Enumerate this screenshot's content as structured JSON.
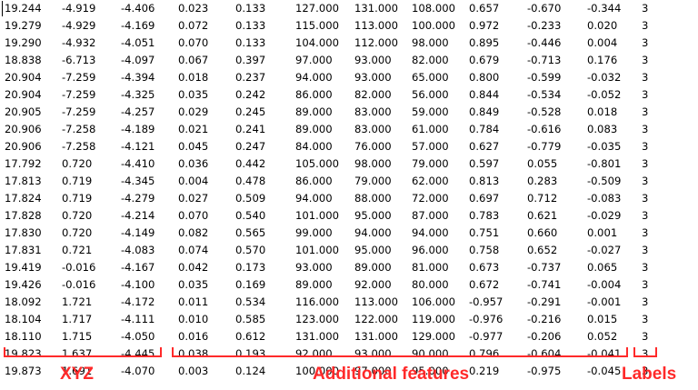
{
  "rows": [
    [
      "19.244",
      "-4.919",
      "-4.406",
      "0.023",
      "0.133",
      "127.000",
      "131.000",
      "108.000",
      "0.657",
      "-0.670",
      "-0.344",
      "3"
    ],
    [
      "19.279",
      "-4.929",
      "-4.169",
      "0.072",
      "0.133",
      "115.000",
      "113.000",
      "100.000",
      "0.972",
      "-0.233",
      "0.020",
      "3"
    ],
    [
      "19.290",
      "-4.932",
      "-4.051",
      "0.070",
      "0.133",
      "104.000",
      "112.000",
      "98.000",
      "0.895",
      "-0.446",
      "0.004",
      "3"
    ],
    [
      "18.838",
      "-6.713",
      "-4.097",
      "0.067",
      "0.397",
      "97.000",
      "93.000",
      "82.000",
      "0.679",
      "-0.713",
      "0.176",
      "3"
    ],
    [
      "20.904",
      "-7.259",
      "-4.394",
      "0.018",
      "0.237",
      "94.000",
      "93.000",
      "65.000",
      "0.800",
      "-0.599",
      "-0.032",
      "3"
    ],
    [
      "20.904",
      "-7.259",
      "-4.325",
      "0.035",
      "0.242",
      "86.000",
      "82.000",
      "56.000",
      "0.844",
      "-0.534",
      "-0.052",
      "3"
    ],
    [
      "20.905",
      "-7.259",
      "-4.257",
      "0.029",
      "0.245",
      "89.000",
      "83.000",
      "59.000",
      "0.849",
      "-0.528",
      "0.018",
      "3"
    ],
    [
      "20.906",
      "-7.258",
      "-4.189",
      "0.021",
      "0.241",
      "89.000",
      "83.000",
      "61.000",
      "0.784",
      "-0.616",
      "0.083",
      "3"
    ],
    [
      "20.906",
      "-7.258",
      "-4.121",
      "0.045",
      "0.247",
      "84.000",
      "76.000",
      "57.000",
      "0.627",
      "-0.779",
      "-0.035",
      "3"
    ],
    [
      "17.792",
      "0.720",
      "-4.410",
      "0.036",
      "0.442",
      "105.000",
      "98.000",
      "79.000",
      "0.597",
      "0.055",
      "-0.801",
      "3"
    ],
    [
      "17.813",
      "0.719",
      "-4.345",
      "0.004",
      "0.478",
      "86.000",
      "79.000",
      "62.000",
      "0.813",
      "0.283",
      "-0.509",
      "3"
    ],
    [
      "17.824",
      "0.719",
      "-4.279",
      "0.027",
      "0.509",
      "94.000",
      "88.000",
      "72.000",
      "0.697",
      "0.712",
      "-0.083",
      "3"
    ],
    [
      "17.828",
      "0.720",
      "-4.214",
      "0.070",
      "0.540",
      "101.000",
      "95.000",
      "87.000",
      "0.783",
      "0.621",
      "-0.029",
      "3"
    ],
    [
      "17.830",
      "0.720",
      "-4.149",
      "0.082",
      "0.565",
      "99.000",
      "94.000",
      "94.000",
      "0.751",
      "0.660",
      "0.001",
      "3"
    ],
    [
      "17.831",
      "0.721",
      "-4.083",
      "0.074",
      "0.570",
      "101.000",
      "95.000",
      "96.000",
      "0.758",
      "0.652",
      "-0.027",
      "3"
    ],
    [
      "19.419",
      "-0.016",
      "-4.167",
      "0.042",
      "0.173",
      "93.000",
      "89.000",
      "81.000",
      "0.673",
      "-0.737",
      "0.065",
      "3"
    ],
    [
      "19.426",
      "-0.016",
      "-4.100",
      "0.035",
      "0.169",
      "89.000",
      "92.000",
      "80.000",
      "0.672",
      "-0.741",
      "-0.004",
      "3"
    ],
    [
      "18.092",
      "1.721",
      "-4.172",
      "0.011",
      "0.534",
      "116.000",
      "113.000",
      "106.000",
      "-0.957",
      "-0.291",
      "-0.001",
      "3"
    ],
    [
      "18.104",
      "1.717",
      "-4.111",
      "0.010",
      "0.585",
      "123.000",
      "122.000",
      "119.000",
      "-0.976",
      "-0.216",
      "0.015",
      "3"
    ],
    [
      "18.110",
      "1.715",
      "-4.050",
      "0.016",
      "0.612",
      "131.000",
      "131.000",
      "129.000",
      "-0.977",
      "-0.206",
      "0.052",
      "3"
    ],
    [
      "19.823",
      "1.637",
      "-4.445",
      "0.038",
      "0.193",
      "92.000",
      "93.000",
      "90.000",
      "0.796",
      "-0.604",
      "-0.041",
      "3"
    ],
    [
      "19.873",
      "1.691",
      "-4.070",
      "0.003",
      "0.124",
      "100.000",
      "97.000",
      "95.000",
      "0.219",
      "-0.975",
      "-0.045",
      "3"
    ]
  ],
  "groups": {
    "xyz": "XYZ",
    "features": "Additional features",
    "labels": "Labels"
  },
  "accent_color": "#ff2a2a"
}
